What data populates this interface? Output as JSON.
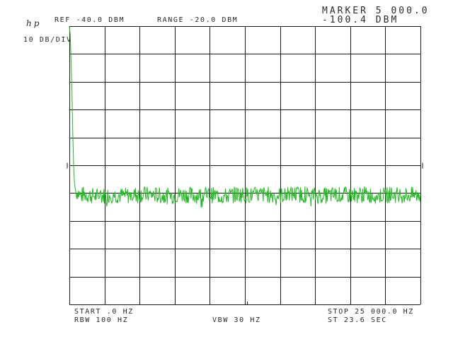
{
  "header": {
    "logo": "hp",
    "ref_level": "REF -40.0 DBM",
    "range": "RANGE -20.0 DBM",
    "marker_label": "MARKER 5 000.0",
    "marker_value": "-100.4 DBM",
    "scale": "10 DB/DIV"
  },
  "footer": {
    "start": "START .0 HZ",
    "stop": "STOP 25 000.0 HZ",
    "rbw": "RBW 100 HZ",
    "vbw": "VBW 30 HZ",
    "sweep": "ST 23.6 SEC"
  },
  "colors": {
    "trace": "#22b822",
    "grid": "#1a1a1a",
    "text": "#2a2a2a"
  },
  "chart_data": {
    "type": "line",
    "x_unit": "Hz",
    "y_unit": "dBm",
    "xlim": [
      0,
      25000
    ],
    "ylim": [
      -140,
      -40
    ],
    "db_per_div": 10,
    "grid": true,
    "x_divisions": 10,
    "y_divisions": 10,
    "marker": {
      "x": 5000,
      "y": -100.4
    },
    "series": [
      {
        "points": [
          [
            0,
            -40
          ],
          [
            60,
            -43
          ],
          [
            120,
            -52
          ],
          [
            180,
            -63
          ],
          [
            240,
            -78
          ],
          [
            300,
            -90
          ],
          [
            360,
            -96
          ],
          [
            420,
            -98.5
          ],
          [
            480,
            -100
          ],
          [
            600,
            -99.5
          ],
          [
            800,
            -101
          ],
          [
            1000,
            -100.5
          ],
          [
            1500,
            -100.8
          ],
          [
            2000,
            -101.2
          ],
          [
            3000,
            -100.6
          ],
          [
            4000,
            -101.0
          ],
          [
            5000,
            -100.4
          ],
          [
            6000,
            -100.7
          ],
          [
            7000,
            -101.1
          ],
          [
            8000,
            -100.5
          ],
          [
            9000,
            -100.9
          ],
          [
            10000,
            -100.6
          ],
          [
            11000,
            -101.2
          ],
          [
            12000,
            -100.4
          ],
          [
            13000,
            -100.8
          ],
          [
            14000,
            -100.5
          ],
          [
            15000,
            -100.9
          ],
          [
            16000,
            -100.3
          ],
          [
            17000,
            -100.7
          ],
          [
            18000,
            -101.0
          ],
          [
            19000,
            -100.6
          ],
          [
            20000,
            -100.8
          ],
          [
            21000,
            -100.5
          ],
          [
            22000,
            -100.9
          ],
          [
            23000,
            -100.6
          ],
          [
            24000,
            -100.7
          ],
          [
            25000,
            -100.8
          ]
        ],
        "noise_peak_to_peak_db": 6
      }
    ]
  }
}
